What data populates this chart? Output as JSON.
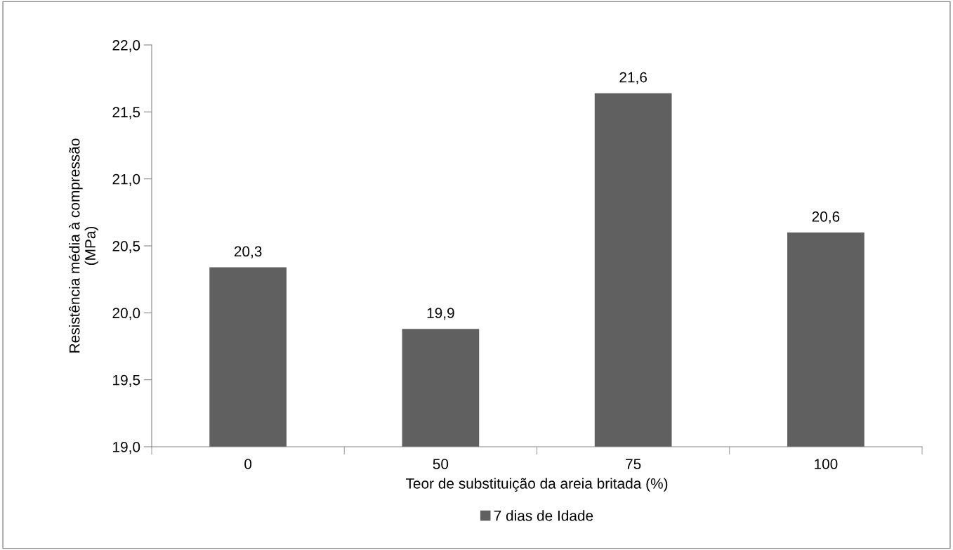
{
  "chart_data": {
    "type": "bar",
    "xlabel": "Teor de substituição da areia britada (%)",
    "ylabel": "Resistência média à compressão\n(MPa)",
    "categories": [
      "0",
      "50",
      "75",
      "100"
    ],
    "series": [
      {
        "name": "7 dias de Idade",
        "color": "#606060",
        "values": [
          20.34,
          19.88,
          21.64,
          20.6
        ],
        "value_labels": [
          "20,3",
          "19,9",
          "21,6",
          "20,6"
        ]
      }
    ],
    "ylim": [
      19.0,
      22.0
    ],
    "yticks": [
      {
        "value": 19.0,
        "label": "19,0"
      },
      {
        "value": 19.5,
        "label": "19,5"
      },
      {
        "value": 20.0,
        "label": "20,0"
      },
      {
        "value": 20.5,
        "label": "20,5"
      },
      {
        "value": 21.0,
        "label": "21,0"
      },
      {
        "value": 21.5,
        "label": "21,5"
      },
      {
        "value": 22.0,
        "label": "22,0"
      }
    ],
    "grid": false,
    "legend": "bottom"
  }
}
